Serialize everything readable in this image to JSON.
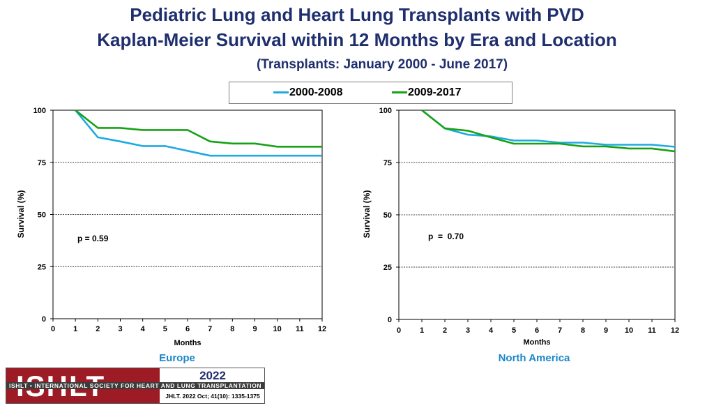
{
  "title": {
    "line1": "Pediatric Lung and Heart Lung Transplants with PVD",
    "line2": "Kaplan-Meier Survival within 12 Months by Era and Location",
    "subtitle": "(Transplants: January 2000 - June 2017)"
  },
  "legend": [
    {
      "name": "2000-2008",
      "color": "#1fa9e1"
    },
    {
      "name": "2009-2017",
      "color": "#16a216"
    }
  ],
  "footer": {
    "logo_text": "ISHLT",
    "society": "ISHLT • INTERNATIONAL SOCIETY FOR HEART AND LUNG TRANSPLANTATION",
    "year": "2022",
    "citation": "JHLT. 2022 Oct; 41(10): 1335-1375"
  },
  "chart_data": [
    {
      "type": "line",
      "region": "Europe",
      "xlabel": "Months",
      "ylabel": "Survival (%)",
      "xlim": [
        0,
        12
      ],
      "ylim": [
        0,
        100
      ],
      "x_ticks": [
        "0",
        "1",
        "2",
        "3",
        "4",
        "5",
        "6",
        "7",
        "8",
        "9",
        "10",
        "11",
        "12"
      ],
      "y_ticks": [
        "0",
        "25",
        "50",
        "75",
        "100"
      ],
      "annotation": "p = 0.59",
      "x": [
        1,
        2,
        3,
        4,
        5,
        6,
        7,
        8,
        9,
        10,
        11,
        12
      ],
      "series": [
        {
          "name": "2000-2008",
          "values": [
            100,
            87,
            85,
            82.8,
            82.8,
            80.5,
            78.2,
            78.2,
            78.2,
            78.2,
            78.2,
            78.2
          ]
        },
        {
          "name": "2009-2017",
          "values": [
            100,
            91.5,
            91.5,
            90.5,
            90.5,
            90.5,
            85,
            84,
            84,
            82.5,
            82.5,
            82.5
          ]
        }
      ]
    },
    {
      "type": "line",
      "region": "North America",
      "xlabel": "Months",
      "ylabel": "Survival (%)",
      "xlim": [
        0,
        12
      ],
      "ylim": [
        0,
        100
      ],
      "x_ticks": [
        "0",
        "1",
        "2",
        "3",
        "4",
        "5",
        "6",
        "7",
        "8",
        "9",
        "10",
        "11",
        "12"
      ],
      "y_ticks": [
        "0",
        "25",
        "50",
        "75",
        "100"
      ],
      "annotation": "p  =  0.70",
      "x": [
        1,
        2,
        3,
        4,
        5,
        6,
        7,
        8,
        9,
        10,
        11,
        12
      ],
      "series": [
        {
          "name": "2000-2008",
          "values": [
            100,
            91.3,
            88.3,
            87.5,
            85.5,
            85.5,
            84.5,
            84.5,
            83.5,
            83.5,
            83.5,
            82.5
          ]
        },
        {
          "name": "2009-2017",
          "values": [
            100,
            91.3,
            90.2,
            87,
            84,
            84,
            84,
            82.7,
            82.7,
            81.7,
            81.7,
            80.3
          ]
        }
      ]
    }
  ]
}
